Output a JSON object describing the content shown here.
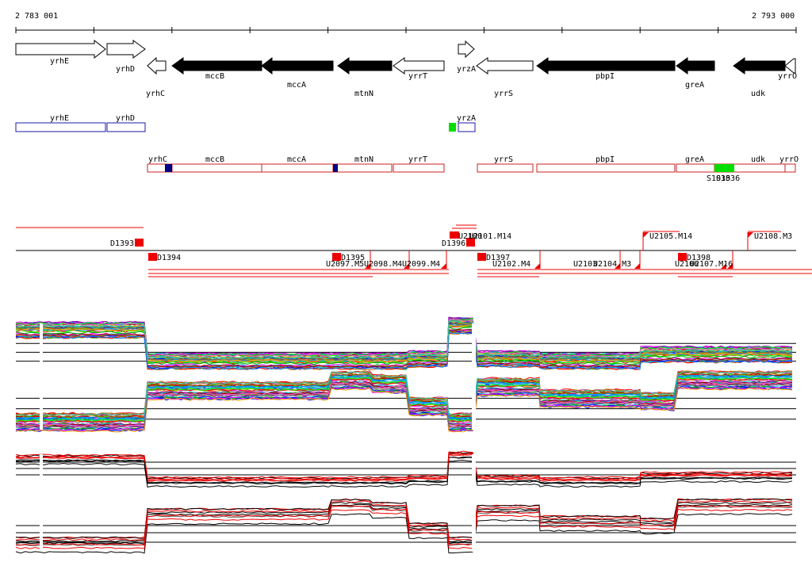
{
  "coords": {
    "start": "2 783 001",
    "end": "2 793 000"
  },
  "forward_genes": [
    {
      "name": "yrhE",
      "fill": "white"
    },
    {
      "name": "yrhD",
      "fill": "white"
    },
    {
      "name": "yrzA",
      "fill": "white"
    }
  ],
  "reverse_genes": [
    {
      "name": "yrhC",
      "fill": "white"
    },
    {
      "name": "mccB",
      "fill": "black"
    },
    {
      "name": "mccA",
      "fill": "black"
    },
    {
      "name": "mtnN",
      "fill": "black"
    },
    {
      "name": "yrrT",
      "fill": "white"
    },
    {
      "name": "yrrS",
      "fill": "white"
    },
    {
      "name": "pbpI",
      "fill": "black"
    },
    {
      "name": "greA",
      "fill": "black"
    },
    {
      "name": "udk",
      "fill": "black"
    },
    {
      "name": "yrrO",
      "fill": "white"
    }
  ],
  "forward_boxes": [
    "yrhE",
    "yrhD",
    "yrzA"
  ],
  "reverse_boxes": [
    "yrhC",
    "mccB",
    "mccA",
    "mtnN",
    "yrrT",
    "yrrS",
    "pbpI",
    "greA",
    "udk",
    "yrrO"
  ],
  "reverse_box_site": "S1035",
  "reverse_box_site_2": "S1036",
  "forward_features": [
    "D1393",
    "D1396",
    "U2100",
    "U2101.M14",
    "U2105.M14",
    "U2108.M3"
  ],
  "reverse_features": [
    "D1394",
    "D1395",
    "U2097.M5",
    "U2098.M4",
    "U2099.M4",
    "D1397",
    "U2102.M4",
    "U2103",
    "U2104.M3",
    "D1398",
    "U2106",
    "U2107.M16"
  ],
  "colors": {
    "forward_box": "#1a1aaa",
    "reverse_box": "#cc2222",
    "feature": "#ee0000",
    "highlight": "#00dd00",
    "marker": "#000080"
  }
}
